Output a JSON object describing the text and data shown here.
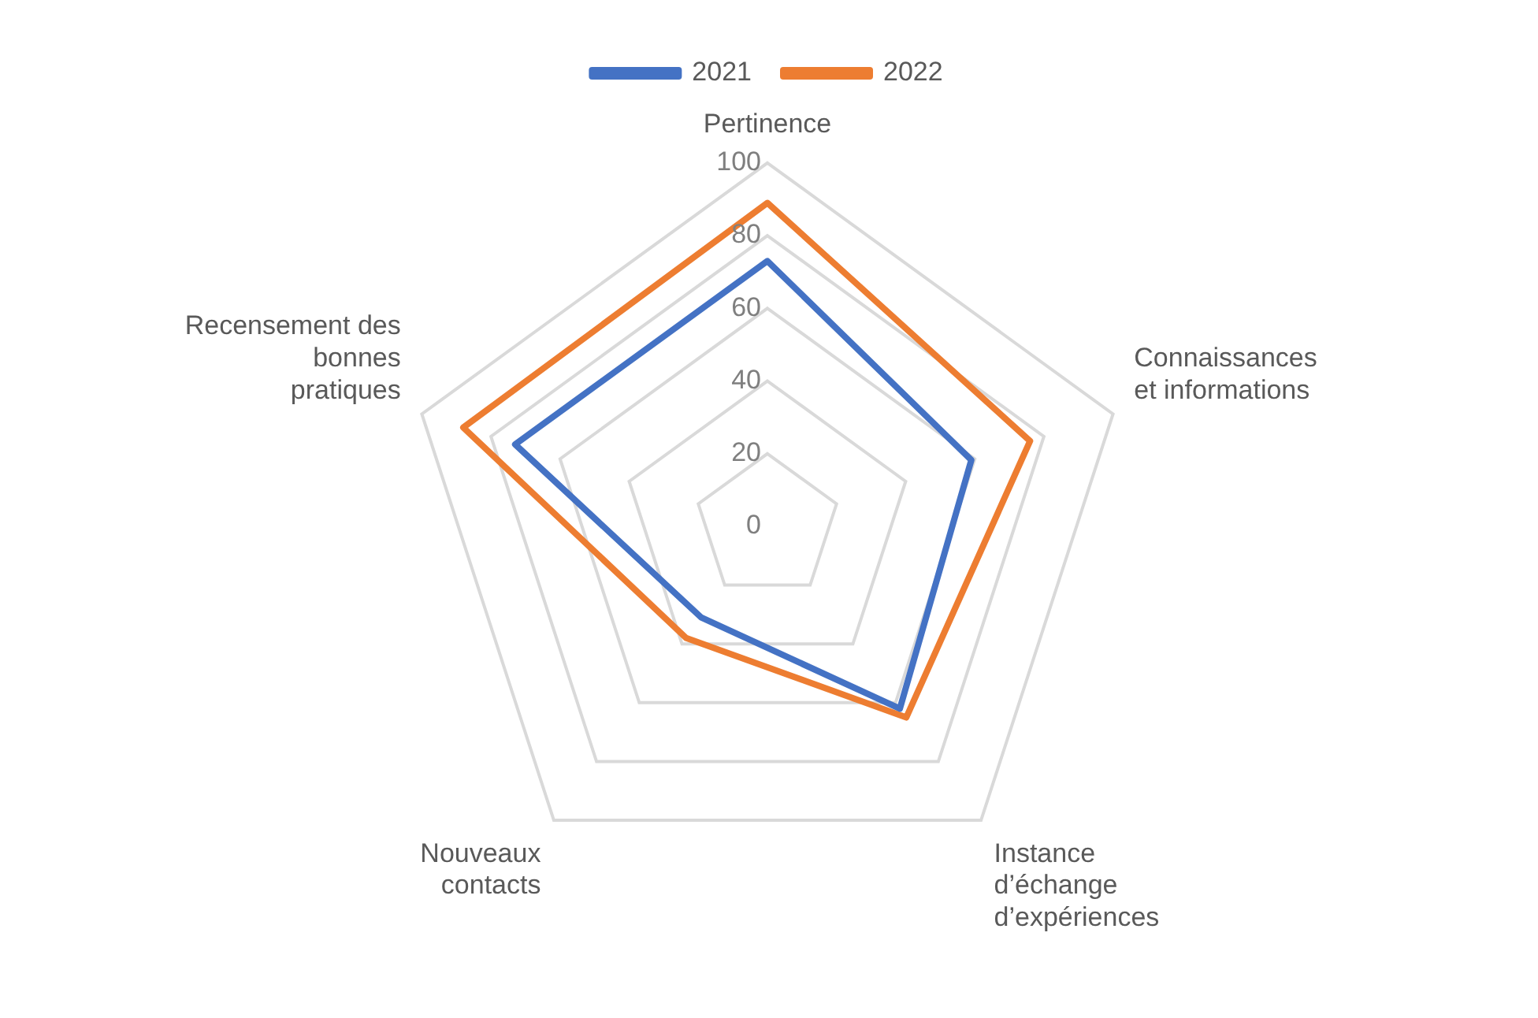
{
  "chart_data": {
    "type": "radar",
    "categories": [
      "Pertinence",
      "Connaissances et informations",
      "Instance d’échange d’expériences",
      "Nouveaux contacts",
      "Recensement des bonnes pratiques"
    ],
    "series": [
      {
        "name": "2021",
        "color": "#4472c4",
        "values": [
          73,
          59,
          62,
          31,
          73
        ]
      },
      {
        "name": "2022",
        "color": "#ed7d31",
        "values": [
          89,
          76,
          65,
          38,
          88
        ]
      }
    ],
    "ylim": [
      0,
      100
    ],
    "yticks": [
      0,
      20,
      40,
      60,
      80,
      100
    ],
    "grid": true,
    "legend": "top",
    "marker": "none"
  }
}
